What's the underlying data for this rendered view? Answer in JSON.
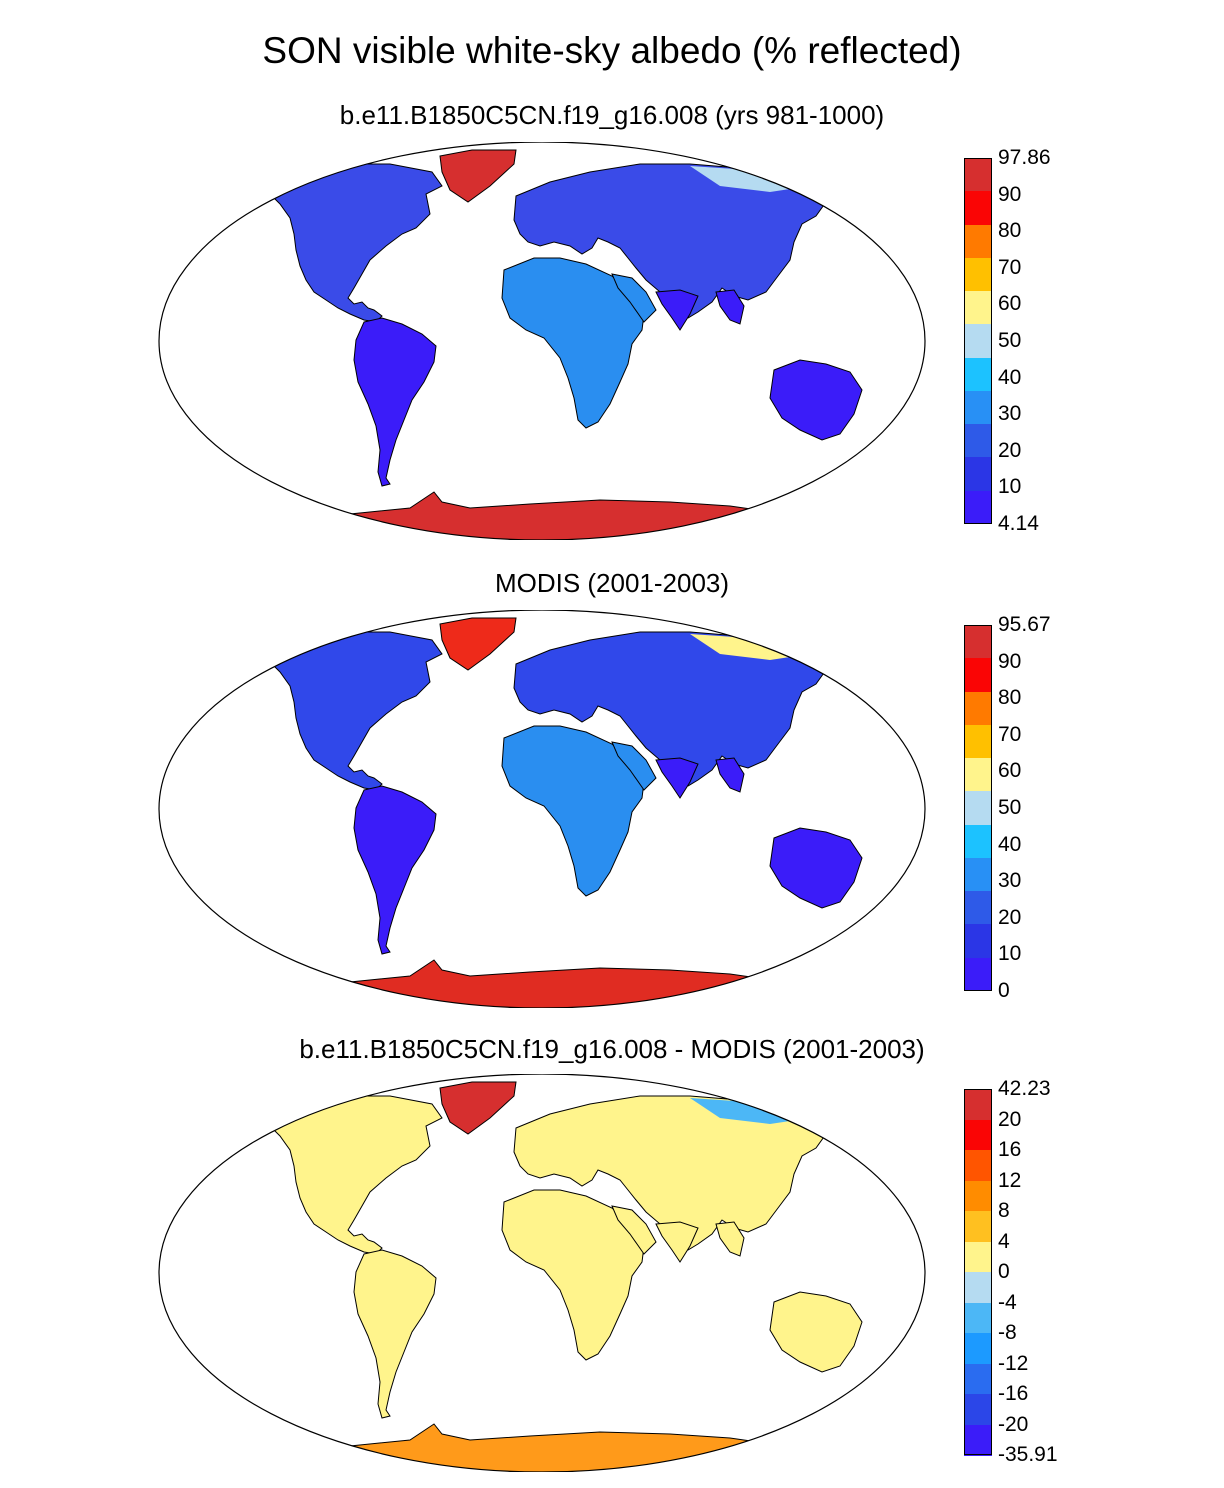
{
  "figure": {
    "title": "SON visible white-sky albedo (% reflected)"
  },
  "panels": [
    {
      "title": "b.e11.B1850C5CN.f19_g16.008 (yrs 981-1000)",
      "colorbar": {
        "labels": [
          "97.86",
          "90",
          "80",
          "70",
          "60",
          "50",
          "40",
          "30",
          "20",
          "10",
          "4.14"
        ],
        "colors": [
          "#d62f2f",
          "#fa0505",
          "#ff7a00",
          "#ffc000",
          "#fff48c",
          "#b5dbf1",
          "#1cc2ff",
          "#2890f5",
          "#2e5ae8",
          "#2b36e6",
          "#3b1cf9"
        ]
      },
      "fills": {
        "land_north": "#3a4be8",
        "land_south": "#3b1cf9",
        "land_arid": "#2a8ef0",
        "greenland": "#d62f2f",
        "antarctica": "#d62f2f",
        "arctic": "#b5dbf1"
      }
    },
    {
      "title": "MODIS (2001-2003)",
      "colorbar": {
        "labels": [
          "95.67",
          "90",
          "80",
          "70",
          "60",
          "50",
          "40",
          "30",
          "20",
          "10",
          "0"
        ],
        "colors": [
          "#d62f2f",
          "#fa0505",
          "#ff7a00",
          "#ffc000",
          "#fff48c",
          "#b5dbf1",
          "#1cc2ff",
          "#2890f5",
          "#2e5ae8",
          "#2b36e6",
          "#3b1cf9"
        ]
      },
      "fills": {
        "land_north": "#3048ea",
        "land_south": "#3b1cf9",
        "land_arid": "#2a8ef0",
        "greenland": "#ee2a1a",
        "antarctica": "#e02c22",
        "arctic": "#fff48c"
      }
    },
    {
      "title": "b.e11.B1850C5CN.f19_g16.008 - MODIS (2001-2003)",
      "colorbar": {
        "labels": [
          "42.23",
          "20",
          "16",
          "12",
          "8",
          "4",
          "0",
          "-4",
          "-8",
          "-12",
          "-16",
          "-20",
          "-35.91"
        ],
        "colors": [
          "#d62f2f",
          "#fa0505",
          "#ff5500",
          "#ff8c00",
          "#ffc020",
          "#fff48c",
          "#b5dbf1",
          "#4cb7f6",
          "#1c9aff",
          "#2a6cf0",
          "#2b46e8",
          "#3b1cf9"
        ]
      },
      "fills": {
        "land_north": "#fff48c",
        "land_south": "#fff48c",
        "land_arid": "#fff48c",
        "greenland": "#d62f2f",
        "antarctica": "#ff9a1a",
        "arctic": "#4cb7f6"
      }
    }
  ]
}
